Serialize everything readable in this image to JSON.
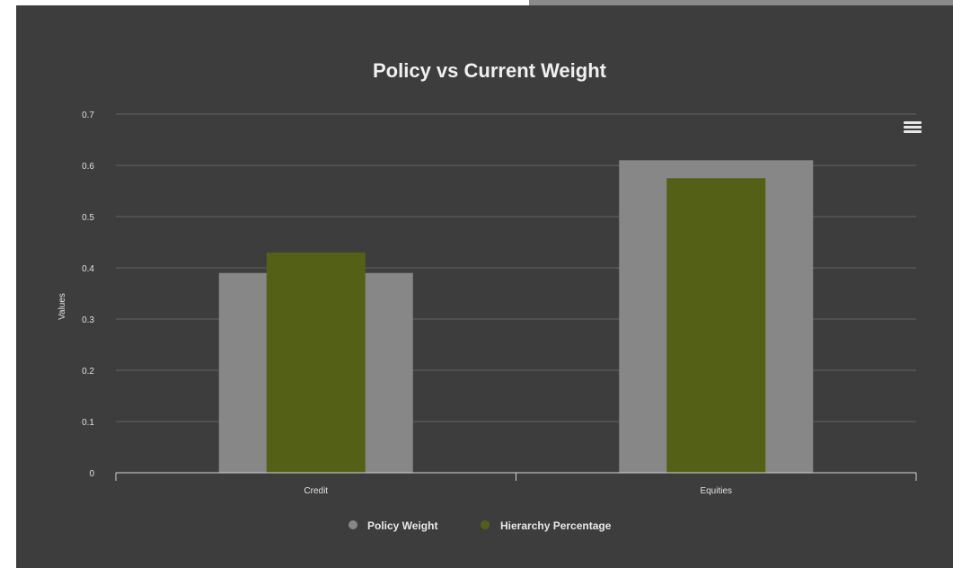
{
  "chart_data": {
    "type": "bar",
    "title": "Policy vs Current Weight",
    "xlabel": "",
    "ylabel": "Values",
    "categories": [
      "Credit",
      "Equities"
    ],
    "series": [
      {
        "name": "Policy Weight",
        "values": [
          0.39,
          0.61
        ],
        "color": "#868786"
      },
      {
        "name": "Hierarchy Percentage",
        "values": [
          0.43,
          0.575
        ],
        "color": "#556017"
      }
    ],
    "ylim": [
      0,
      0.7
    ],
    "y_ticks": [
      "0",
      "0.1",
      "0.2",
      "0.3",
      "0.4",
      "0.5",
      "0.6",
      "0.7"
    ],
    "grid": true,
    "legend": "bottom-center",
    "background": "#3d3d3d"
  },
  "menu": {
    "icon": "hamburger-menu-icon"
  }
}
